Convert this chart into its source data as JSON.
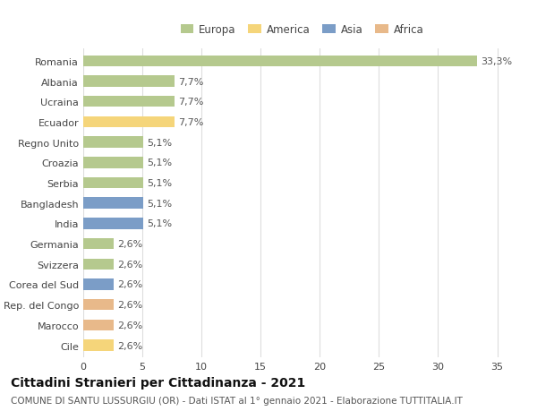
{
  "categories": [
    "Romania",
    "Albania",
    "Ucraina",
    "Ecuador",
    "Regno Unito",
    "Croazia",
    "Serbia",
    "Bangladesh",
    "India",
    "Germania",
    "Svizzera",
    "Corea del Sud",
    "Rep. del Congo",
    "Marocco",
    "Cile"
  ],
  "values": [
    33.3,
    7.7,
    7.7,
    7.7,
    5.1,
    5.1,
    5.1,
    5.1,
    5.1,
    2.6,
    2.6,
    2.6,
    2.6,
    2.6,
    2.6
  ],
  "continents": [
    "Europa",
    "Europa",
    "Europa",
    "America",
    "Europa",
    "Europa",
    "Europa",
    "Asia",
    "Asia",
    "Europa",
    "Europa",
    "Asia",
    "Africa",
    "Africa",
    "America"
  ],
  "colors": {
    "Europa": "#b5c98e",
    "America": "#f5d57a",
    "Asia": "#7b9dc7",
    "Africa": "#e8b98a"
  },
  "legend_order": [
    "Europa",
    "America",
    "Asia",
    "Africa"
  ],
  "title": "Cittadini Stranieri per Cittadinanza - 2021",
  "subtitle": "COMUNE DI SANTU LUSSURGIU (OR) - Dati ISTAT al 1° gennaio 2021 - Elaborazione TUTTITALIA.IT",
  "xlim": [
    0,
    37
  ],
  "xticks": [
    0,
    5,
    10,
    15,
    20,
    25,
    30,
    35
  ],
  "background_color": "#ffffff",
  "grid_color": "#dddddd",
  "bar_height": 0.55,
  "label_fontsize": 8,
  "tick_fontsize": 8,
  "title_fontsize": 10,
  "subtitle_fontsize": 7.5
}
